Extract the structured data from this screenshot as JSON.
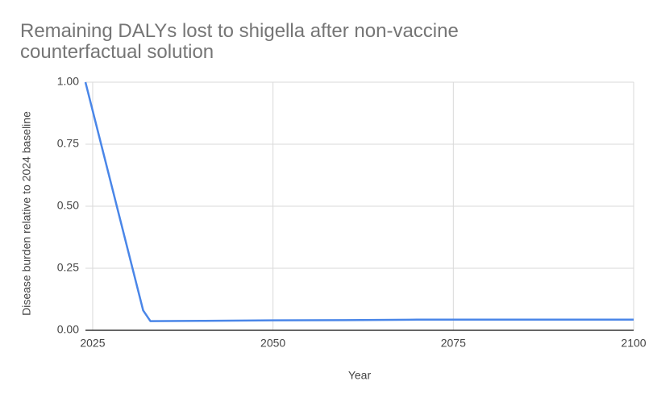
{
  "chart_data": {
    "type": "line",
    "title": "Remaining DALYs lost to shigella after non-vaccine counterfactual solution",
    "x_label": "Year",
    "y_label": "Disease burden relative to 2024 baseline",
    "x": [
      2024,
      2032,
      2033,
      2040,
      2050,
      2060,
      2070,
      2080,
      2090,
      2100
    ],
    "series": [
      {
        "name": "Disease burden",
        "color": "#4a86e8",
        "values": [
          1.0,
          0.08,
          0.037,
          0.038,
          0.04,
          0.041,
          0.043,
          0.043,
          0.043,
          0.043
        ]
      }
    ],
    "xlim": [
      2024,
      2100
    ],
    "xticks": [
      2025,
      2050,
      2075,
      2100
    ],
    "ylim": [
      0,
      1
    ],
    "yticks": [
      {
        "value": 0,
        "label": "0.00"
      },
      0.25,
      {
        "value": 0.5,
        "label": "0.50"
      },
      0.75,
      {
        "value": 1,
        "label": "1.00"
      }
    ],
    "grid": true
  }
}
